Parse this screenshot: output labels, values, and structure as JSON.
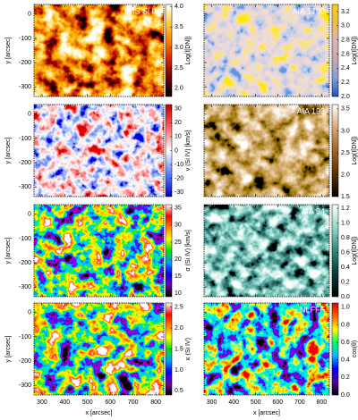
{
  "chart_data": [
    {
      "type": "image",
      "panel_label": "IRIS Si IV",
      "xlim": [
        265,
        835
      ],
      "ylim": [
        -340,
        40
      ],
      "xticks": [
        300,
        400,
        500,
        600,
        700,
        800
      ],
      "yticks": [
        -300,
        -200,
        -100,
        0
      ],
      "xticklabels": false,
      "yticklabels": true,
      "ylabel": "y [arcsec]",
      "colorbar": {
        "label": "Log(I[DN])",
        "lim": [
          1.8,
          4.05
        ],
        "ticks": [
          {
            "value": 2,
            "label": "2.0"
          },
          2.5,
          {
            "value": 3,
            "label": "3.0"
          },
          3.5,
          {
            "value": 4,
            "label": "4.0"
          }
        ],
        "colors": [
          "#000000",
          "#6a0000",
          "#d02000",
          "#ff8000",
          "#ffd040",
          "#ffffff"
        ]
      }
    },
    {
      "type": "image",
      "panel_label": "AIA 1700",
      "xlim": [
        265,
        835
      ],
      "ylim": [
        -340,
        40
      ],
      "xticks": [
        300,
        400,
        500,
        600,
        700,
        800
      ],
      "yticks": [
        -300,
        -200,
        -100,
        0
      ],
      "xticklabels": false,
      "yticklabels": false,
      "colorbar": {
        "label": "Log(I[DN])",
        "lim": [
          2.0,
          3.3
        ],
        "ticks": [
          {
            "value": 2,
            "label": "2.0"
          },
          2.2,
          2.4,
          2.6,
          2.8,
          {
            "value": 3,
            "label": "3.0"
          },
          3.2
        ],
        "colors": [
          "#2050c0",
          "#80a0e0",
          "#c8a8a8",
          "#d8b8b8",
          "#f0c040",
          "#ffd000"
        ]
      }
    },
    {
      "type": "image",
      "xlim": [
        265,
        835
      ],
      "ylim": [
        -340,
        40
      ],
      "xticks": [
        300,
        400,
        500,
        600,
        700,
        800
      ],
      "yticks": [
        -300,
        -200,
        -100,
        0
      ],
      "xticklabels": false,
      "yticklabels": true,
      "ylabel": "y [arcsec]",
      "colorbar": {
        "label": "v (Si IV) [km/s]",
        "lim": [
          -33,
          33
        ],
        "ticks": [
          -30,
          -20,
          -10,
          0,
          10,
          20,
          30
        ],
        "colors": [
          "#0000c0",
          "#6080ff",
          "#ffffff",
          "#ff6060",
          "#c00000"
        ]
      }
    },
    {
      "type": "image",
      "panel_label": "AIA 193",
      "xlim": [
        265,
        835
      ],
      "ylim": [
        -340,
        40
      ],
      "xticks": [
        300,
        400,
        500,
        600,
        700,
        800
      ],
      "yticks": [
        -300,
        -200,
        -100,
        0
      ],
      "xticklabels": false,
      "yticklabels": false,
      "colorbar": {
        "label": "Log(I[DN])",
        "lim": [
          1.5,
          3.6
        ],
        "ticks": [
          1.5,
          {
            "value": 2,
            "label": "2.0"
          },
          2.5,
          {
            "value": 3,
            "label": "3.0"
          },
          3.5
        ],
        "colors": [
          "#000000",
          "#5a3000",
          "#a0641e",
          "#d8aa70",
          "#ffffff"
        ]
      }
    },
    {
      "type": "image",
      "xlim": [
        265,
        835
      ],
      "ylim": [
        -340,
        40
      ],
      "xticks": [
        300,
        400,
        500,
        600,
        700,
        800
      ],
      "yticks": [
        -300,
        -200,
        -100,
        0
      ],
      "xticklabels": false,
      "yticklabels": true,
      "ylabel": "y [arcsec]",
      "colorbar": {
        "label": "σ (Si IV) [km/s]",
        "lim": [
          9,
          36
        ],
        "ticks": [
          10,
          15,
          20,
          25,
          30,
          35
        ],
        "colors": [
          "#000000",
          "#7000a0",
          "#0000ff",
          "#00a0ff",
          "#00e000",
          "#ffff00",
          "#ff8000",
          "#ff0000",
          "#ffffff"
        ]
      }
    },
    {
      "type": "image",
      "panel_label": "AIA 94",
      "xlim": [
        265,
        835
      ],
      "ylim": [
        -340,
        40
      ],
      "xticks": [
        300,
        400,
        500,
        600,
        700,
        800
      ],
      "yticks": [
        -300,
        -200,
        -100,
        0
      ],
      "xticklabels": false,
      "yticklabels": false,
      "colorbar": {
        "label": "Log(I[DN])",
        "lim": [
          0,
          1.25
        ],
        "ticks": [
          {
            "value": 0,
            "label": "0.0"
          },
          0.2,
          0.4,
          0.6,
          0.8,
          {
            "value": 1,
            "label": "1.0"
          },
          1.2
        ],
        "colors": [
          "#000000",
          "#0a3a34",
          "#2a8a7a",
          "#90d8c8",
          "#ffffff"
        ]
      }
    },
    {
      "type": "image",
      "xlim": [
        265,
        835
      ],
      "ylim": [
        -340,
        40
      ],
      "xticks": [
        300,
        400,
        500,
        600,
        700,
        800
      ],
      "yticks": [
        -300,
        -200,
        -100,
        0
      ],
      "xticklabels": true,
      "yticklabels": true,
      "ylabel": "y [arcsec]",
      "xlabel": "x [arcsec]",
      "colorbar": {
        "label": "κ (Si IV)",
        "lim": [
          0.4,
          2.6
        ],
        "ticks": [
          0.5,
          {
            "value": 1,
            "label": "1.0"
          },
          1.5,
          {
            "value": 2,
            "label": "2.0"
          },
          2.5
        ],
        "colors": [
          "#000000",
          "#7000a0",
          "#0000ff",
          "#00a0ff",
          "#00e000",
          "#ffff00",
          "#ff8000",
          "#ff0000",
          "#ffffff"
        ]
      }
    },
    {
      "type": "image",
      "panel_label": "NLFFF",
      "xlim": [
        265,
        835
      ],
      "ylim": [
        -340,
        40
      ],
      "xticks": [
        300,
        400,
        500,
        600,
        700,
        800
      ],
      "yticks": [
        -300,
        -200,
        -100,
        0
      ],
      "xticklabels": true,
      "yticklabels": false,
      "xlabel": "x [arcsec]",
      "colorbar": {
        "label": "cos(θ)",
        "lim": [
          0,
          1.05
        ],
        "ticks": [
          {
            "value": 0,
            "label": "0.0"
          },
          0.2,
          0.4,
          0.6,
          0.8,
          {
            "value": 1,
            "label": "1.0"
          }
        ],
        "colors": [
          "#000000",
          "#5a00a0",
          "#0000ff",
          "#00c0ff",
          "#00ff60",
          "#ffff00",
          "#ff6000",
          "#e00000"
        ]
      }
    }
  ]
}
